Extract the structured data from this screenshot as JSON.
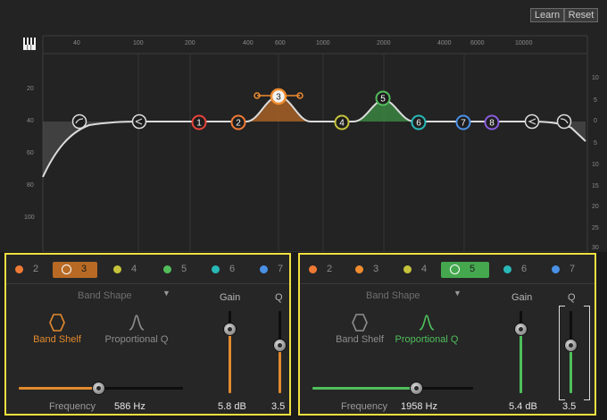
{
  "toolbar": {
    "learn_label": "Learn",
    "reset_label": "Reset"
  },
  "freq_scale": [
    "40",
    "100",
    "200",
    "400",
    "600",
    "1000",
    "2000",
    "4000",
    "6000",
    "10000"
  ],
  "left_scale": [
    "20",
    "40",
    "60",
    "80",
    "100"
  ],
  "right_scale": [
    "10",
    "5",
    "0",
    "5",
    "10",
    "15",
    "20",
    "25",
    "30"
  ],
  "nodes": [
    {
      "label": "1",
      "color": "#e8433a"
    },
    {
      "label": "2",
      "color": "#ef7a35"
    },
    {
      "label": "3",
      "color": "#ef8c2f"
    },
    {
      "label": "4",
      "color": "#c5c33b"
    },
    {
      "label": "5",
      "color": "#53bd5b"
    },
    {
      "label": "6",
      "color": "#29b8b8"
    },
    {
      "label": "7",
      "color": "#4a90e6"
    },
    {
      "label": "8",
      "color": "#8a5cdc"
    }
  ],
  "left_panel": {
    "tabs": [
      {
        "label": "2",
        "color": "#ef7a35"
      },
      {
        "label": "3",
        "color": "#ef8c2f"
      },
      {
        "label": "4",
        "color": "#c5c33b"
      },
      {
        "label": "5",
        "color": "#53bd5b"
      },
      {
        "label": "6",
        "color": "#29b8b8"
      },
      {
        "label": "7",
        "color": "#4a90e6"
      }
    ],
    "selected_band": "3",
    "accent": "#e38a2e",
    "band_shape_header": "Band Shape",
    "shape_options": [
      "Band Shelf",
      "Proportional Q"
    ],
    "selected_shape": "Band Shelf",
    "gain_label": "Gain",
    "q_label": "Q",
    "frequency_label": "Frequency",
    "frequency_value": "586 Hz",
    "gain_value": "5.8 dB",
    "q_value": "3.5"
  },
  "right_panel": {
    "tabs": [
      {
        "label": "2",
        "color": "#ef7a35"
      },
      {
        "label": "3",
        "color": "#ef8c2f"
      },
      {
        "label": "4",
        "color": "#c5c33b"
      },
      {
        "label": "5",
        "color": "#53bd5b"
      },
      {
        "label": "6",
        "color": "#29b8b8"
      },
      {
        "label": "7",
        "color": "#4a90e6"
      }
    ],
    "selected_band": "5",
    "accent": "#4fbf5c",
    "band_shape_header": "Band Shape",
    "shape_options": [
      "Band Shelf",
      "Proportional Q"
    ],
    "selected_shape": "Proportional Q",
    "gain_label": "Gain",
    "q_label": "Q",
    "frequency_label": "Frequency",
    "frequency_value": "1958 Hz",
    "gain_value": "5.4 dB",
    "q_value": "3.5"
  }
}
